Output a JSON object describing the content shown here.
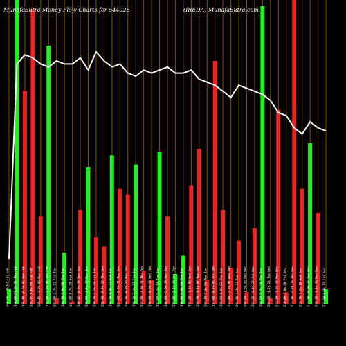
{
  "chart_data": {
    "type": "bar",
    "title": "MunafaSutra  Money Flow  Charts for 544026",
    "subtitle": "(IREDA) MunafaSutra.com",
    "background": "#000000",
    "colors": {
      "up": "#22ee22",
      "down": "#ee2222",
      "line": "#ffffff",
      "grid": "#8a4a00"
    },
    "categories": [
      "166.35 1.7% 07 Fri Feb",
      "166.00 11.8% 06 Thu Feb",
      "185.40 -0.6% 05 Wed Feb",
      "186.55 0.6% 04 Tue Feb",
      "185.45 -3.7% 03 Mon Feb",
      "192.50 -1.2% 01 Sat Feb",
      "194.80 2.7% 31 Fri Jan",
      "189.70 1.0% 30 Thu Jan",
      "187.80 0.7% 29 Wed Jan",
      "186.45 -0.8% 28 Tue Jan",
      "188.00 -1.4% 27 Mon Jan",
      "190.70 1.1% 24 Fri Jan",
      "188.60 -0.4% 23 Thu Jan",
      "189.30 0.9% 22 Wed Jan",
      "187.60 -0.6% 21 Tue Jan",
      "188.70 -0.7% 20 Mon Jan",
      "190.10 1.4% 17 Fri Jan",
      "187.50 -1.3% 16 Thu Jan",
      "190.00 -0.5% 15 Wed Jan",
      "191.00 1.2% 14 Tue Jan",
      "188.80 -2.6% 13 Mon Jan",
      "193.80 -2.1% 10 Fri Jan",
      "198.00 3.0% 09 Thu Jan",
      "192.30 -1.5% 08 Wed Jan",
      "195.20 -3.1% 07 Tue Jan",
      "201.40 1.9% 06 Mon Jan",
      "197.60 -0.7% 03 Fri Jan",
      "199.00 0.8% 02 Thu Jan",
      "197.40 -2.5% 01 Wed Jan",
      "202.40 1.2% 31 Tue Dec",
      "200.00 -1.6% 30 Mon Dec",
      "203.20 -0.4% 27 Fri Dec",
      "204.00 0.9% 26 Thu Dec",
      "202.20 -4.2% 24 Tue Dec",
      "211.10 -3.2% 23 Mon Dec",
      "218.00 2.0% 20 Fri Dec",
      "213.70 -2.7% 19 Thu Dec",
      "219.70 1.2% 18 Wed Dec",
      "217.10 -0.9% 17 Tue Dec",
      "219.10 -1.1% 16 Mon Dec",
      "221.50 0.4% 13 Fri Dec"
    ],
    "series": [
      {
        "values": [
          5,
          100,
          70,
          97,
          29,
          85,
          2,
          17,
          1,
          31,
          45,
          22,
          19,
          49,
          38,
          36,
          46,
          11,
          8,
          50,
          29,
          10,
          16,
          39,
          51,
          8,
          80,
          31,
          12,
          21,
          4,
          25,
          98,
          2,
          64,
          4,
          100,
          38,
          53,
          30,
          5
        ],
        "direction": [
          "up",
          "up",
          "down",
          "down",
          "down",
          "up",
          "down",
          "up",
          "down",
          "down",
          "up",
          "down",
          "down",
          "up",
          "down",
          "down",
          "up",
          "down",
          "down",
          "up",
          "down",
          "up",
          "up",
          "down",
          "down",
          "down",
          "down",
          "down",
          "down",
          "down",
          "down",
          "down",
          "up",
          "down",
          "down",
          "down",
          "down",
          "down",
          "up",
          "down",
          "up"
        ]
      }
    ],
    "overlay_line": {
      "values": [
        15,
        79,
        82,
        81,
        79,
        78,
        80,
        79,
        79,
        81,
        77,
        83,
        80,
        78,
        79,
        76,
        75,
        77,
        76,
        77,
        78,
        76,
        76,
        77,
        74,
        73,
        72,
        70,
        68,
        72,
        71,
        70,
        69,
        67,
        63,
        62,
        58,
        56,
        60,
        58,
        57
      ]
    },
    "ylim": [
      0,
      100
    ],
    "grid": true,
    "legend": "none"
  }
}
